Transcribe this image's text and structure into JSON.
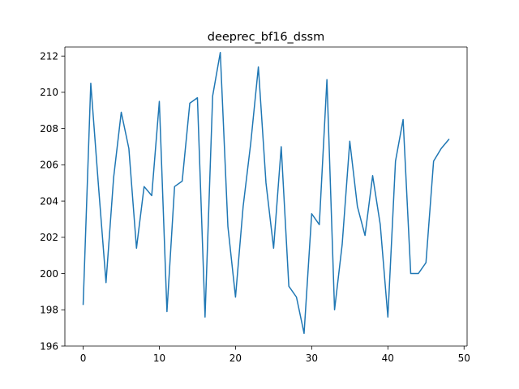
{
  "chart_data": {
    "type": "line",
    "title": "deeprec_bf16_dssm",
    "xlabel": "",
    "ylabel": "",
    "xlim": [
      -2.4,
      50.4
    ],
    "ylim": [
      196.0,
      212.5
    ],
    "xticks": [
      0,
      10,
      20,
      30,
      40,
      50
    ],
    "yticks": [
      196,
      198,
      200,
      202,
      204,
      206,
      208,
      210,
      212
    ],
    "grid": false,
    "legend": "none",
    "line_color": "#1f77b4",
    "series": [
      {
        "x": [
          0,
          1,
          2,
          3,
          4,
          5,
          6,
          7,
          8,
          9,
          10,
          11,
          12,
          13,
          14,
          15,
          16,
          17,
          18,
          19,
          20,
          21,
          22,
          23,
          24,
          25,
          26,
          27,
          28,
          29,
          30,
          31,
          32,
          33,
          34,
          35,
          36,
          37,
          38,
          39,
          40,
          41,
          42,
          43,
          44,
          45,
          46,
          47,
          48
        ],
        "values": [
          198.3,
          210.5,
          204.9,
          199.5,
          205.3,
          208.9,
          206.9,
          201.4,
          204.8,
          204.3,
          209.5,
          197.9,
          204.8,
          205.1,
          209.4,
          209.7,
          197.6,
          209.8,
          212.2,
          202.6,
          198.7,
          203.7,
          207.2,
          211.4,
          205.0,
          201.4,
          207.0,
          199.3,
          198.7,
          196.7,
          203.3,
          202.7,
          210.7,
          198.0,
          201.6,
          207.3,
          203.7,
          202.1,
          205.4,
          202.7,
          197.6,
          206.2,
          208.5,
          200.0,
          200.0,
          200.6,
          206.2,
          206.9,
          207.4
        ]
      }
    ]
  }
}
